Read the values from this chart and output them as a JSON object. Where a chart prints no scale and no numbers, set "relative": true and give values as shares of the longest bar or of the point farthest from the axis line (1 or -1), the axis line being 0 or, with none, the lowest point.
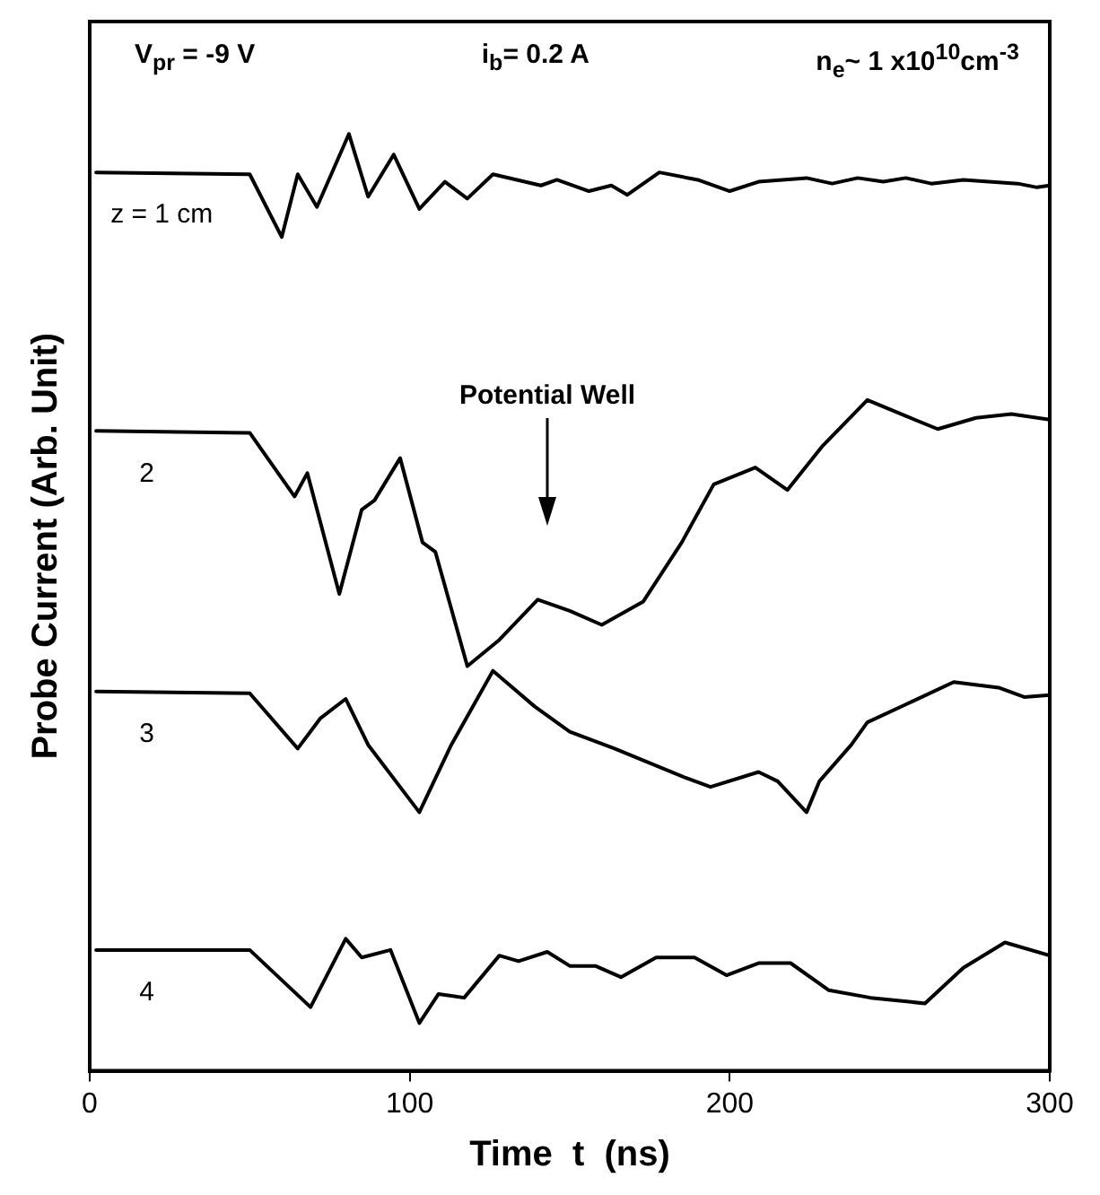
{
  "chart_data": {
    "type": "line",
    "relative": true,
    "xlabel": "Time  t  (ns)",
    "ylabel": "Probe Current (Arb. Unit)",
    "xlim": [
      0,
      300
    ],
    "xticks": [
      0,
      100,
      200,
      300
    ],
    "grid": false,
    "legend": false,
    "marker": "none",
    "line_style": "solid",
    "annotations": [
      "V$_{pr}$ = -9 V",
      "i$_{b}$= 0.2 A",
      "n$_{e}$~ 1 x10$^{10}$cm$^{-3}$",
      "Potential Well"
    ],
    "series": [
      {
        "name": "z = 1 cm",
        "color": "#000000",
        "x": [
          2,
          50,
          60,
          65,
          71,
          81,
          87,
          95,
          103,
          111,
          118,
          126,
          141,
          146,
          156,
          163,
          168,
          178,
          190,
          200,
          209,
          224,
          232,
          240,
          248,
          255,
          263,
          273,
          290,
          296,
          300
        ],
        "values": [
          0.959,
          0.957,
          0.89,
          0.957,
          0.922,
          1.0,
          0.933,
          0.978,
          0.92,
          0.949,
          0.931,
          0.957,
          0.945,
          0.951,
          0.939,
          0.945,
          0.935,
          0.959,
          0.951,
          0.939,
          0.949,
          0.953,
          0.947,
          0.953,
          0.949,
          0.953,
          0.947,
          0.951,
          0.947,
          0.943,
          0.945
        ]
      },
      {
        "name": "2",
        "color": "#000000",
        "x": [
          2,
          50,
          64,
          68,
          78,
          85,
          89,
          97,
          104,
          108,
          118,
          128,
          140,
          150,
          160,
          173,
          185,
          195,
          208,
          218,
          229,
          243,
          255,
          265,
          277,
          288,
          300
        ],
        "values": [
          0.683,
          0.681,
          0.613,
          0.638,
          0.509,
          0.599,
          0.609,
          0.654,
          0.564,
          0.554,
          0.432,
          0.46,
          0.503,
          0.491,
          0.476,
          0.501,
          0.564,
          0.626,
          0.644,
          0.62,
          0.667,
          0.716,
          0.699,
          0.685,
          0.697,
          0.701,
          0.695
        ]
      },
      {
        "name": "3",
        "color": "#000000",
        "x": [
          2,
          50,
          65,
          72,
          80,
          87,
          103,
          113,
          126,
          139,
          150,
          164,
          186,
          194,
          209,
          215,
          224,
          228,
          238,
          243,
          255,
          270,
          284,
          292,
          300
        ],
        "values": [
          0.405,
          0.403,
          0.344,
          0.376,
          0.397,
          0.348,
          0.276,
          0.348,
          0.427,
          0.389,
          0.362,
          0.344,
          0.313,
          0.303,
          0.319,
          0.309,
          0.276,
          0.309,
          0.348,
          0.372,
          0.391,
          0.415,
          0.409,
          0.399,
          0.401
        ]
      },
      {
        "name": "4",
        "color": "#000000",
        "x": [
          2,
          50,
          69,
          80,
          85,
          94,
          103,
          109,
          117,
          128,
          134,
          143,
          150,
          158,
          166,
          177,
          189,
          199,
          209,
          219,
          231,
          244,
          261,
          273,
          286,
          300
        ],
        "values": [
          0.129,
          0.129,
          0.068,
          0.141,
          0.121,
          0.129,
          0.051,
          0.082,
          0.078,
          0.123,
          0.117,
          0.127,
          0.112,
          0.112,
          0.1,
          0.121,
          0.121,
          0.102,
          0.115,
          0.115,
          0.086,
          0.078,
          0.072,
          0.11,
          0.137,
          0.123
        ]
      }
    ]
  }
}
